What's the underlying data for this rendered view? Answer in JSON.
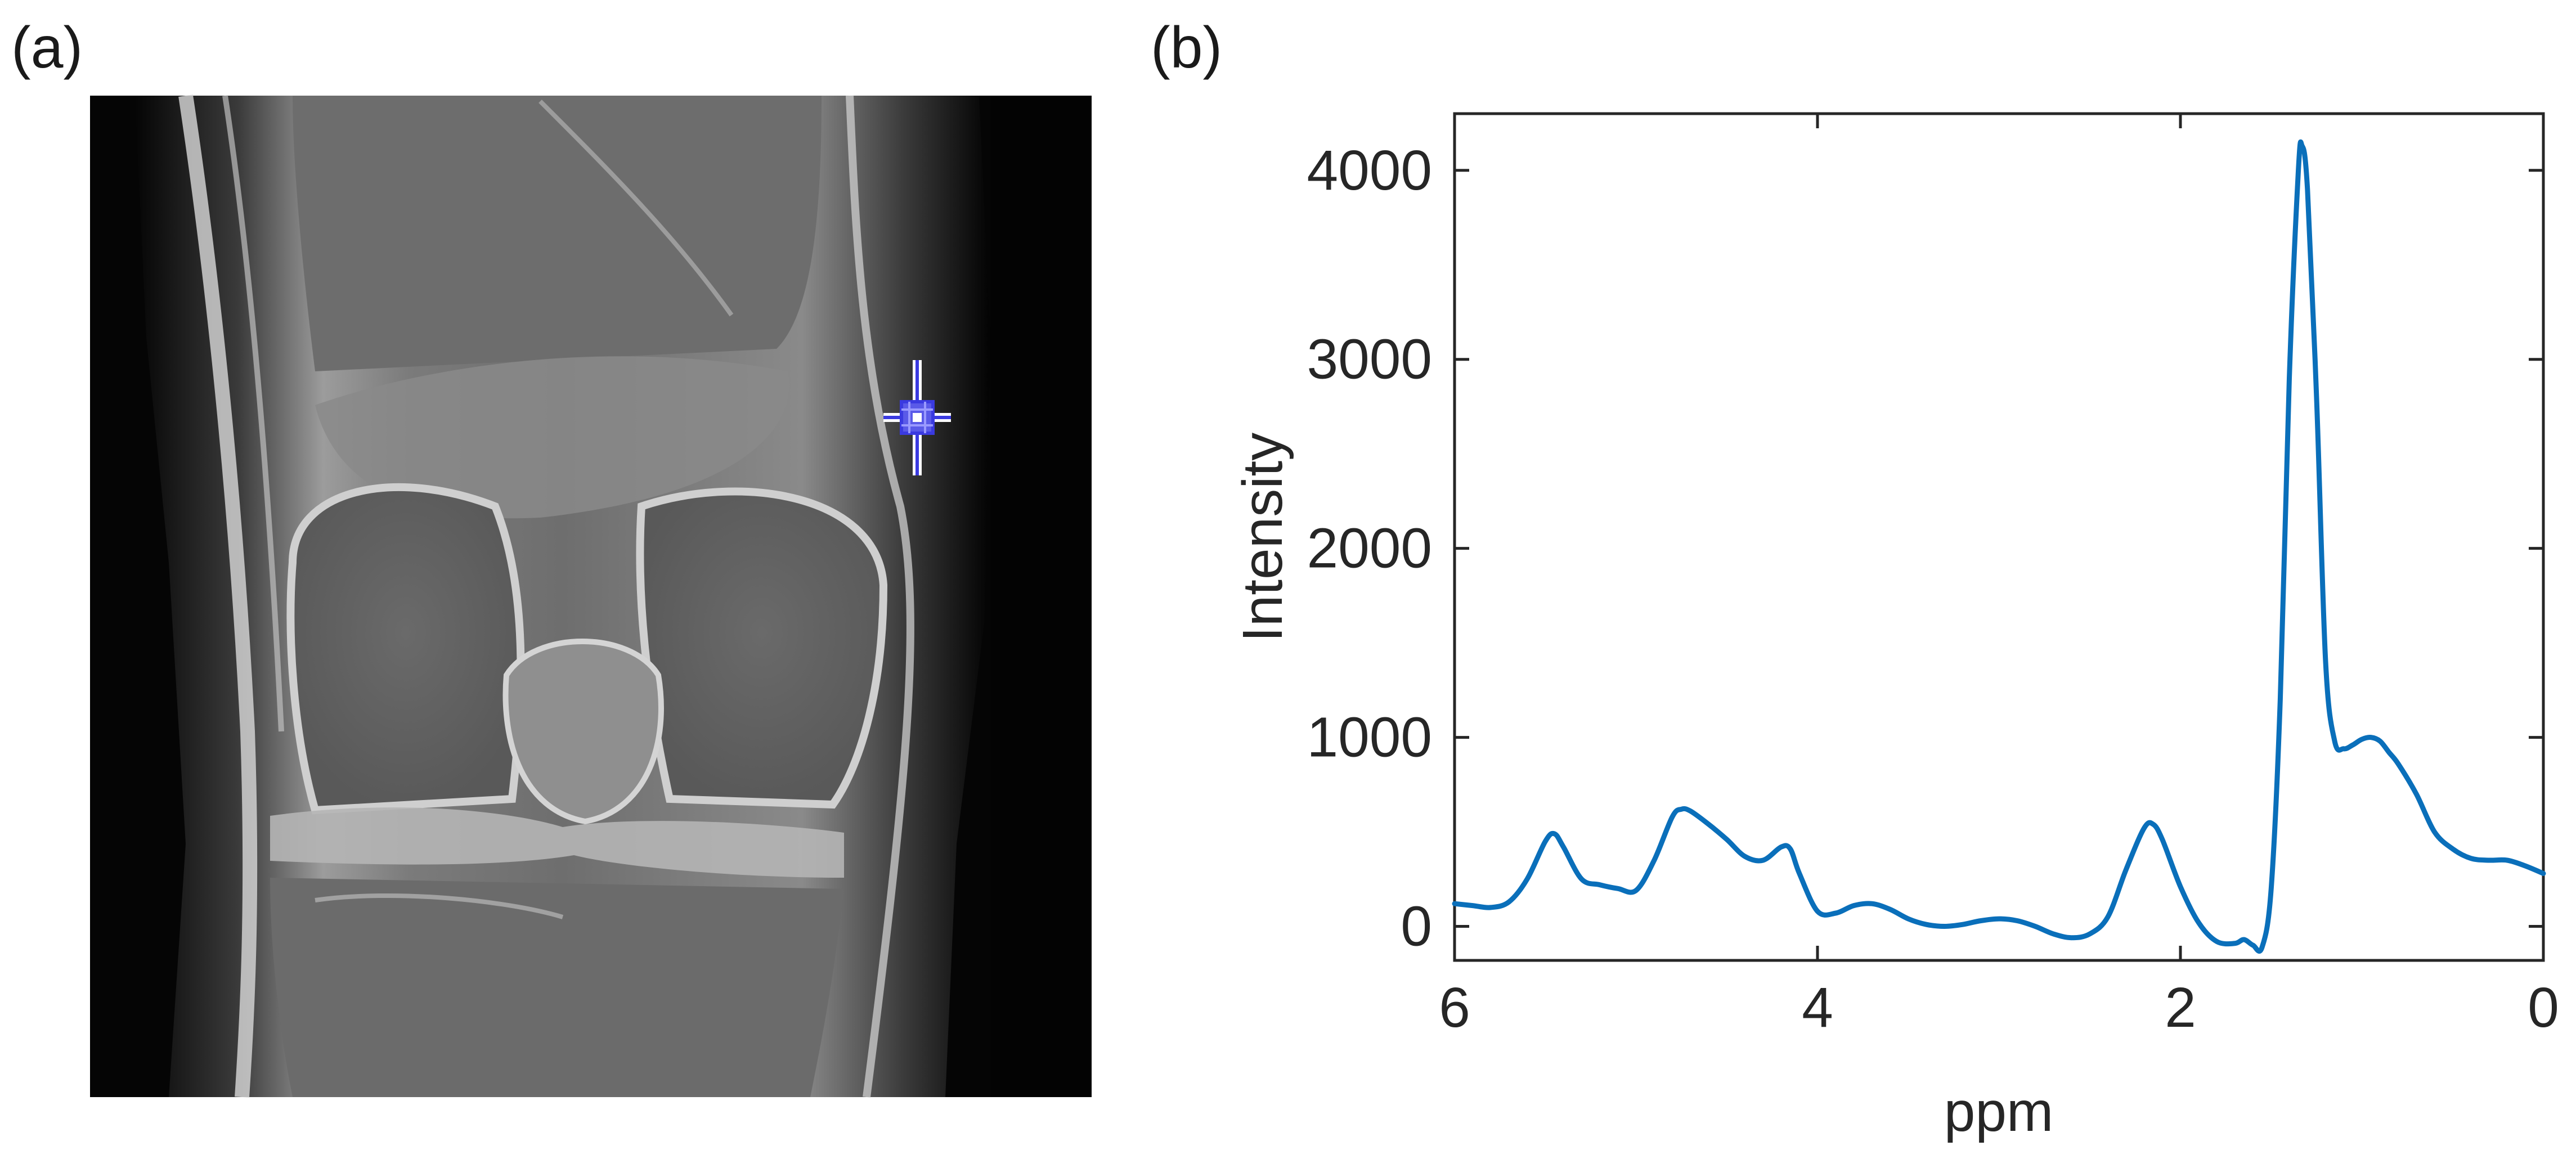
{
  "panels": {
    "a": {
      "label": "(a)"
    },
    "b": {
      "label": "(b)"
    }
  },
  "image_panel": {
    "kind": "knee MRI image",
    "marker_color": "#3a3ae0"
  },
  "chart_data": {
    "type": "line",
    "xlabel": "ppm",
    "ylabel": "Intensity",
    "x_reversed": true,
    "xlim": [
      0,
      6
    ],
    "ylim": [
      -180,
      4300
    ],
    "xticks": [
      6,
      4,
      2,
      0
    ],
    "yticks": [
      0,
      1000,
      2000,
      3000,
      4000
    ],
    "grid": false,
    "line_color": "#0a6fba",
    "series": [
      {
        "x": [
          6.0,
          5.9,
          5.8,
          5.7,
          5.6,
          5.5,
          5.45,
          5.4,
          5.3,
          5.2,
          5.1,
          5.0,
          4.9,
          4.8,
          4.75,
          4.7,
          4.6,
          4.5,
          4.4,
          4.3,
          4.2,
          4.15,
          4.1,
          4.0,
          3.9,
          3.8,
          3.7,
          3.6,
          3.5,
          3.4,
          3.3,
          3.2,
          3.1,
          3.0,
          2.9,
          2.8,
          2.7,
          2.6,
          2.5,
          2.4,
          2.3,
          2.2,
          2.15,
          2.1,
          2.0,
          1.9,
          1.8,
          1.7,
          1.65,
          1.6,
          1.55,
          1.5,
          1.45,
          1.4,
          1.35,
          1.33,
          1.3,
          1.25,
          1.2,
          1.15,
          1.1,
          1.05,
          1.0,
          0.95,
          0.9,
          0.85,
          0.8,
          0.7,
          0.6,
          0.5,
          0.4,
          0.3,
          0.2,
          0.1,
          0.0
        ],
        "y": [
          120,
          110,
          100,
          130,
          250,
          450,
          490,
          420,
          250,
          220,
          200,
          190,
          350,
          580,
          620,
          610,
          540,
          460,
          370,
          350,
          420,
          410,
          280,
          80,
          70,
          110,
          120,
          90,
          40,
          10,
          0,
          10,
          30,
          40,
          30,
          0,
          -40,
          -60,
          -40,
          50,
          300,
          520,
          540,
          460,
          210,
          20,
          -80,
          -90,
          -70,
          -100,
          -110,
          200,
          1200,
          2900,
          4000,
          4130,
          3900,
          2800,
          1400,
          980,
          940,
          960,
          990,
          1000,
          980,
          920,
          860,
          700,
          500,
          410,
          360,
          350,
          350,
          320,
          280
        ]
      }
    ]
  }
}
